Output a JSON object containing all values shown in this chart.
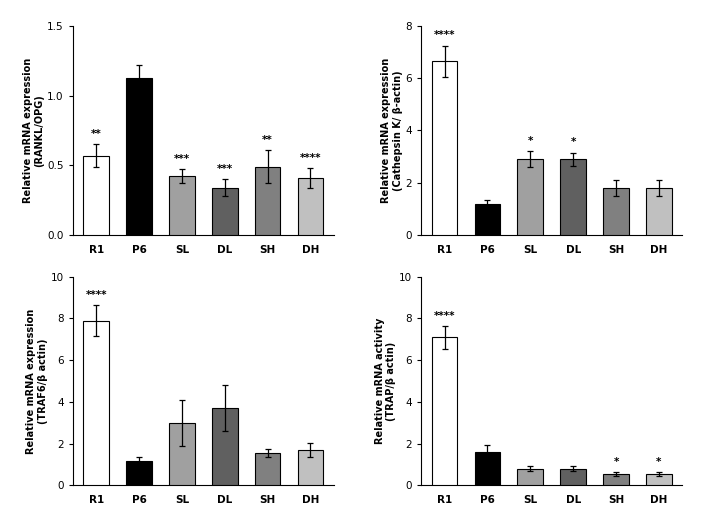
{
  "plots": [
    {
      "ylabel": "Relative mRNA expression\n(RANKL/OPG)",
      "ylim": [
        0,
        1.5
      ],
      "yticks": [
        0.0,
        0.5,
        1.0,
        1.5
      ],
      "categories": [
        "R1",
        "P6",
        "SL",
        "DL",
        "SH",
        "DH"
      ],
      "values": [
        0.57,
        1.13,
        0.42,
        0.34,
        0.49,
        0.41
      ],
      "errors": [
        0.08,
        0.09,
        0.05,
        0.06,
        0.12,
        0.07
      ],
      "colors": [
        "white",
        "black",
        "#a0a0a0",
        "#606060",
        "#808080",
        "#c0c0c0"
      ],
      "sig_labels": [
        "**",
        "",
        "***",
        "***",
        "**",
        "****"
      ]
    },
    {
      "ylabel": "Relative mRNA expression\n(Cathepsin K/ β-actin)",
      "ylim": [
        0,
        8
      ],
      "yticks": [
        0,
        2,
        4,
        6,
        8
      ],
      "categories": [
        "R1",
        "P6",
        "SL",
        "DL",
        "SH",
        "DH"
      ],
      "values": [
        6.65,
        1.2,
        2.9,
        2.9,
        1.8,
        1.8
      ],
      "errors": [
        0.6,
        0.12,
        0.3,
        0.25,
        0.3,
        0.3
      ],
      "colors": [
        "white",
        "black",
        "#a0a0a0",
        "#606060",
        "#808080",
        "#c0c0c0"
      ],
      "sig_labels": [
        "****",
        "",
        "*",
        "*",
        "",
        ""
      ]
    },
    {
      "ylabel": "Relative mRNA expression\n(TRAF6/β actin)",
      "ylim": [
        0,
        10
      ],
      "yticks": [
        0,
        2,
        4,
        6,
        8,
        10
      ],
      "categories": [
        "R1",
        "P6",
        "SL",
        "DL",
        "SH",
        "DH"
      ],
      "values": [
        7.9,
        1.15,
        3.0,
        3.7,
        1.55,
        1.7
      ],
      "errors": [
        0.75,
        0.2,
        1.1,
        1.1,
        0.2,
        0.35
      ],
      "colors": [
        "white",
        "black",
        "#a0a0a0",
        "#606060",
        "#808080",
        "#c0c0c0"
      ],
      "sig_labels": [
        "****",
        "",
        "",
        "",
        "",
        ""
      ]
    },
    {
      "ylabel": "Relative mRNA activity\n(TRAP/β actin)",
      "ylim": [
        0,
        10
      ],
      "yticks": [
        0,
        2,
        4,
        6,
        8,
        10
      ],
      "categories": [
        "R1",
        "P6",
        "SL",
        "DL",
        "SH",
        "DH"
      ],
      "values": [
        7.1,
        1.6,
        0.8,
        0.8,
        0.55,
        0.55
      ],
      "errors": [
        0.55,
        0.35,
        0.12,
        0.12,
        0.08,
        0.08
      ],
      "colors": [
        "white",
        "black",
        "#a0a0a0",
        "#606060",
        "#808080",
        "#c0c0c0"
      ],
      "sig_labels": [
        "****",
        "",
        "",
        "",
        "*",
        "*"
      ]
    }
  ],
  "background_color": "white",
  "edgecolor": "black",
  "bar_width": 0.6,
  "fontsize_ylabel": 7.0,
  "fontsize_ticks": 7.5,
  "fontsize_sig": 7.5
}
